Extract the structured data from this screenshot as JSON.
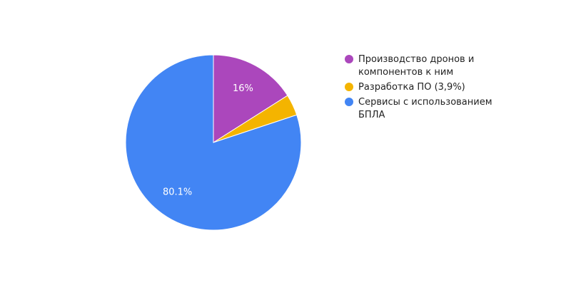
{
  "chart_data": {
    "type": "pie",
    "title": "",
    "legend_position": "right",
    "slices": [
      {
        "label": "Производство дронов и компонентов к ним",
        "value": 16.0,
        "display": "16%",
        "color": "#ab47bc"
      },
      {
        "label": "Разработка ПО (3,9%)",
        "value": 3.9,
        "display": "",
        "color": "#f4b400"
      },
      {
        "label": "Сервисы с использованием БПЛА",
        "value": 80.1,
        "display": "80.1%",
        "color": "#4285f4"
      }
    ]
  }
}
